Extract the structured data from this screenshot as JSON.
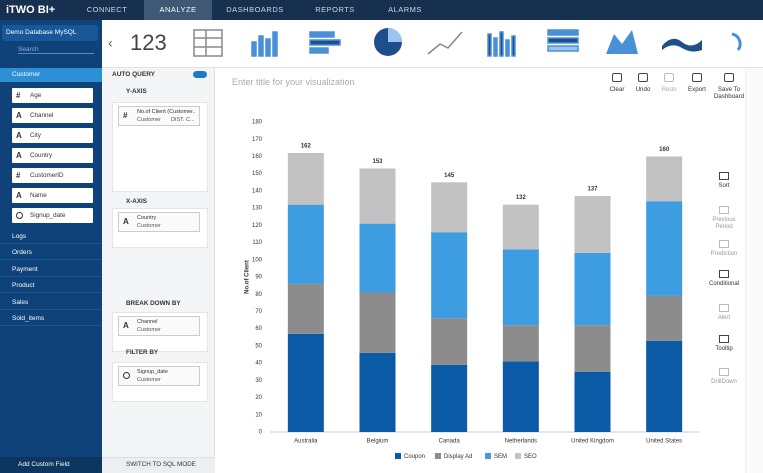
{
  "nav": {
    "logo": "iTWO BI+",
    "tabs": [
      "CONNECT",
      "ANALYZE",
      "DASHBOARDS",
      "REPORTS",
      "ALARMS"
    ]
  },
  "sidebar": {
    "database": "Demo Database MySQL",
    "search": "Search",
    "tables": [
      "Customer",
      "Logs",
      "Orders",
      "Payment",
      "Product",
      "Sales",
      "Sold_items"
    ],
    "fields": [
      {
        "icon": "#",
        "name": "Age"
      },
      {
        "icon": "A",
        "name": "Channel"
      },
      {
        "icon": "A",
        "name": "City"
      },
      {
        "icon": "A",
        "name": "Country"
      },
      {
        "icon": "#",
        "name": "CustomerID"
      },
      {
        "icon": "A",
        "name": "Name"
      },
      {
        "name": "Signup_date"
      }
    ],
    "add_field": "Add Custom Field"
  },
  "panel": {
    "auto_query": "AUTO QUERY",
    "sections": [
      {
        "title": "Y-AXIS",
        "icon": "#",
        "name": "No.of Client (Customer...",
        "sub": "Customer",
        "agg": "DIST. C..."
      },
      {
        "title": "X-AXIS",
        "icon": "A",
        "name": "Country",
        "sub": "Customer"
      },
      {
        "title": "BREAK DOWN BY",
        "icon": "A",
        "name": "Channel",
        "sub": "Customer"
      },
      {
        "title": "FILTER BY",
        "name": "Signup_date",
        "sub": "Customer"
      }
    ],
    "sql": "SWITCH TO SQL MODE"
  },
  "toolbar": {
    "big_number": "123",
    "title_placeholder": "Enter title for your visualization",
    "actions": [
      "Clear",
      "Undo",
      "Redo",
      "Export",
      "Save To Dashboard"
    ]
  },
  "side_tools": [
    "Sort",
    "Previous Period",
    "Prediction",
    "Conditional",
    "Alert",
    "Tooltip",
    "DrillDown"
  ],
  "chart_data": {
    "type": "stacked_bar",
    "y_label": "No.of Client",
    "categories": [
      "Australia",
      "Belgium",
      "Canada",
      "Netherlands",
      "United Kingdom",
      "United States"
    ],
    "series": [
      {
        "name": "Coupon",
        "color": "#0b5aa6",
        "values": [
          57,
          46,
          39,
          41,
          35,
          53
        ]
      },
      {
        "name": "Display Ad",
        "color": "#8c8c8c",
        "values": [
          29,
          35,
          27,
          21,
          27,
          26
        ]
      },
      {
        "name": "SEM",
        "color": "#3d9de0",
        "values": [
          46,
          40,
          50,
          44,
          42,
          55
        ]
      },
      {
        "name": "SEO",
        "color": "#c2c2c2",
        "values": [
          30,
          32,
          29,
          26,
          33,
          26
        ]
      }
    ],
    "totals": [
      162,
      153,
      145,
      132,
      137,
      160
    ],
    "ylim": [
      0,
      180
    ],
    "yticks": [
      0,
      10,
      20,
      30,
      40,
      50,
      60,
      70,
      80,
      90,
      100,
      110,
      120,
      130,
      140,
      150,
      160,
      170,
      180
    ],
    "grid": false,
    "legend": "bottom"
  }
}
